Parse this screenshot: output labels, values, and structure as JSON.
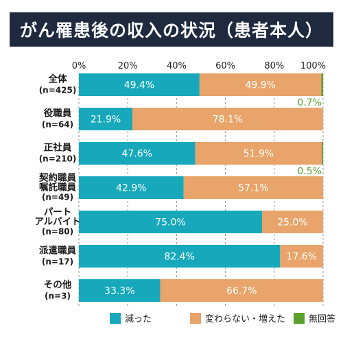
{
  "title": "がん罹患後の収入の状況（患者本人）",
  "chart_data": {
    "type": "bar",
    "orientation": "horizontal",
    "stacked": true,
    "title": "がん罹患後の収入の状況（患者本人）",
    "xlim": [
      0,
      100
    ],
    "x_ticks": [
      "0%",
      "20%",
      "40%",
      "60%",
      "80%",
      "100%"
    ],
    "grid": true,
    "legend_position": "bottom",
    "categories": [
      {
        "lines": [
          "全体"
        ],
        "n": "(n=425)"
      },
      {
        "lines": [
          "役職員"
        ],
        "n": "(n=64)"
      },
      {
        "lines": [
          "正社員"
        ],
        "n": "(n=210)"
      },
      {
        "lines": [
          "契約職員",
          "嘱託職員"
        ],
        "n": "(n=49)"
      },
      {
        "lines": [
          "パート",
          "アルバイト"
        ],
        "n": "(n=80)"
      },
      {
        "lines": [
          "派遣職員"
        ],
        "n": "(n=17)"
      },
      {
        "lines": [
          "その他"
        ],
        "n": "(n=3)"
      }
    ],
    "series": [
      {
        "name": "減った",
        "color": "#17a9bb",
        "values": [
          49.4,
          21.9,
          47.6,
          42.9,
          75.0,
          82.4,
          33.3
        ]
      },
      {
        "name": "変わらない・増えた",
        "color": "#e8a46a",
        "values": [
          49.9,
          78.1,
          51.9,
          57.1,
          25.0,
          17.6,
          66.7
        ]
      },
      {
        "name": "無回答",
        "color": "#5aa02c",
        "values": [
          0.7,
          0,
          0.5,
          0,
          0,
          0,
          0
        ]
      }
    ],
    "data_labels": [
      [
        "49.4%",
        "21.9%",
        "47.6%",
        "42.9%",
        "75.0%",
        "82.4%",
        "33.3%"
      ],
      [
        "49.9%",
        "78.1%",
        "51.9%",
        "57.1%",
        "25.0%",
        "17.6%",
        "66.7%"
      ],
      [
        "0.7%",
        "",
        "0.5%",
        "",
        "",
        "",
        ""
      ]
    ]
  }
}
